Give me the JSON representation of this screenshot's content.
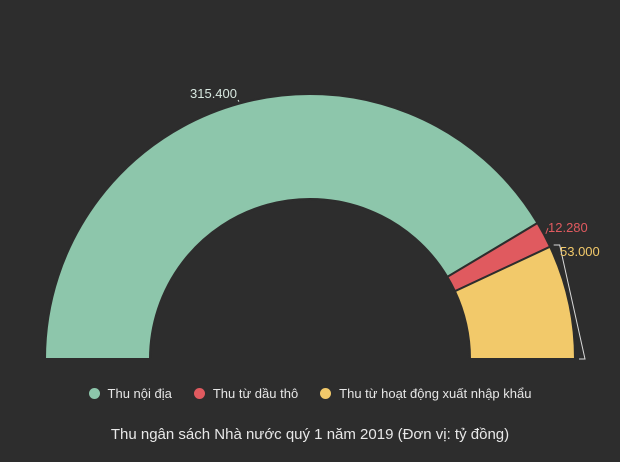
{
  "chart_data": {
    "type": "pie",
    "subtype": "half-donut",
    "title": "Thu ngân sách Nhà nước quý 1 năm 2019 (Đơn vị: tỷ đồng)",
    "series": [
      {
        "name": "Thu nội địa",
        "value": 315400,
        "label": "315.400",
        "color": "#8dc6ab",
        "label_color": "#d8e8e0"
      },
      {
        "name": "Thu từ dầu thô",
        "value": 12280,
        "label": "12.280",
        "color": "#e05a5f",
        "label_color": "#e05a5f"
      },
      {
        "name": "Thu từ hoạt động xuất nhập khẩu",
        "value": 53000,
        "label": "53.000",
        "color": "#f2c96a",
        "label_color": "#f2c96a"
      }
    ],
    "legend_position": "bottom"
  },
  "colors": {
    "background": "#2d2d2d",
    "legend_text": "#e6e6e6"
  }
}
